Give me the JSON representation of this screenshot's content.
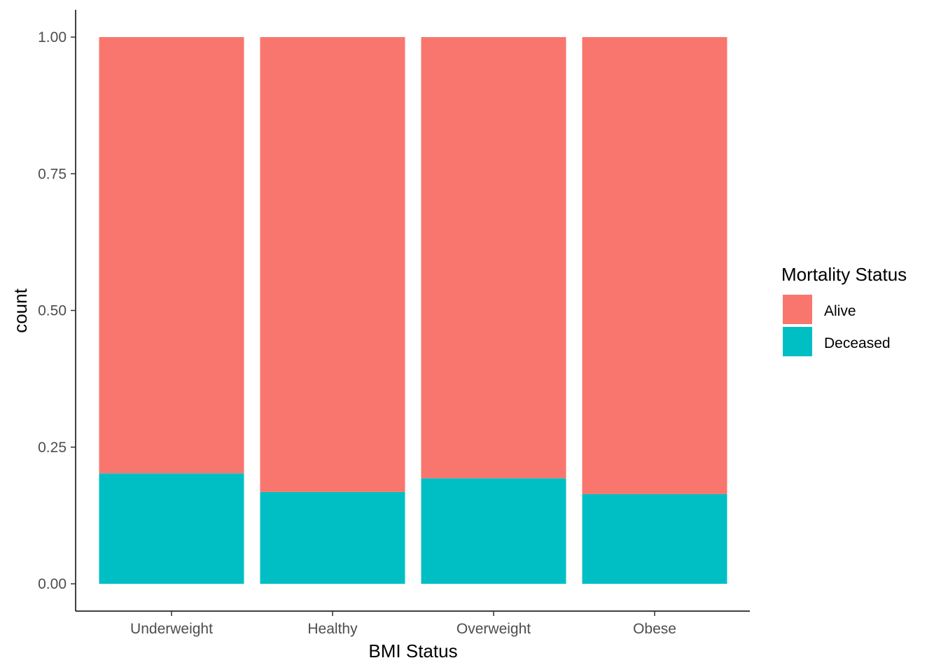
{
  "chart_data": {
    "type": "bar",
    "stacked": true,
    "position": "fill",
    "categories": [
      "Underweight",
      "Healthy",
      "Overweight",
      "Obese"
    ],
    "series": [
      {
        "name": "Alive",
        "color": "#F8766D",
        "values": [
          0.798,
          0.832,
          0.807,
          0.836
        ]
      },
      {
        "name": "Deceased",
        "color": "#00BFC4",
        "values": [
          0.202,
          0.168,
          0.193,
          0.164
        ]
      }
    ],
    "xlabel": "BMI Status",
    "ylabel": "count",
    "ylim": [
      0,
      1
    ],
    "yticks": [
      "0.00",
      "0.25",
      "0.50",
      "0.75",
      "1.00"
    ],
    "ytick_values": [
      0,
      0.25,
      0.5,
      0.75,
      1
    ],
    "grid": false,
    "legend": {
      "title": "Mortality Status",
      "placement": "right",
      "order": [
        "Alive",
        "Deceased"
      ]
    }
  }
}
